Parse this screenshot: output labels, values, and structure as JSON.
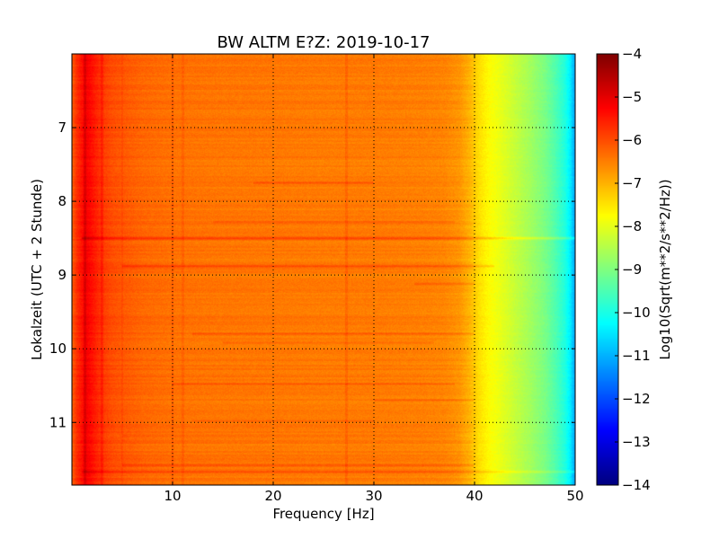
{
  "chart_data": {
    "type": "heatmap",
    "title": "BW ALTM E?Z: 2019-10-17",
    "xlabel": "Frequency [Hz]",
    "ylabel": "Lokalzeit (UTC + 2 Stunde)",
    "xlim": [
      0,
      50
    ],
    "ylim": [
      6.0,
      11.85
    ],
    "x_ticks": [
      10,
      20,
      30,
      40,
      50
    ],
    "y_ticks": [
      7,
      8,
      9,
      10,
      11
    ],
    "grid": true,
    "colormap": "jet",
    "colorbar": {
      "label": "Log10(Sqrt(m**2/s**2/Hz))",
      "range": [
        -14,
        -4
      ],
      "ticks": [
        -4,
        -5,
        -6,
        -7,
        -8,
        -9,
        -10,
        -11,
        -12,
        -13,
        -14
      ]
    },
    "frequency_profile": {
      "x": [
        0.0,
        0.5,
        1.0,
        1.5,
        2.0,
        3.0,
        4.0,
        5.0,
        7.0,
        10.0,
        15.0,
        20.0,
        25.0,
        30.0,
        35.0,
        37.0,
        38.5,
        39.5,
        40.5,
        41.5,
        42.5,
        44.0,
        45.5,
        47.0,
        48.0,
        49.0,
        49.5,
        50.0
      ],
      "values": [
        -6.2,
        -5.7,
        -5.4,
        -5.2,
        -5.4,
        -5.8,
        -6.0,
        -6.1,
        -6.25,
        -6.35,
        -6.4,
        -6.42,
        -6.45,
        -6.45,
        -6.5,
        -6.55,
        -6.7,
        -7.0,
        -7.45,
        -7.75,
        -7.95,
        -8.3,
        -8.65,
        -9.05,
        -9.45,
        -9.95,
        -10.4,
        -11.2
      ]
    },
    "horizontal_bands": [
      {
        "time": 7.75,
        "f_range": [
          18,
          30
        ],
        "delta": 0.35
      },
      {
        "time": 8.28,
        "f_range": [
          14,
          38
        ],
        "delta": 0.25
      },
      {
        "time": 8.5,
        "f_range": [
          1,
          50
        ],
        "delta": 0.75
      },
      {
        "time": 8.88,
        "f_range": [
          5,
          42
        ],
        "delta": 0.45
      },
      {
        "time": 9.12,
        "f_range": [
          34,
          40
        ],
        "delta": 0.35
      },
      {
        "time": 9.8,
        "f_range": [
          12,
          40
        ],
        "delta": 0.3
      },
      {
        "time": 9.92,
        "f_range": [
          15,
          36
        ],
        "delta": 0.25
      },
      {
        "time": 10.48,
        "f_range": [
          10,
          38
        ],
        "delta": 0.3
      },
      {
        "time": 10.7,
        "f_range": [
          30,
          40
        ],
        "delta": 0.3
      },
      {
        "time": 10.98,
        "f_range": [
          12,
          30
        ],
        "delta": 0.2
      },
      {
        "time": 11.18,
        "f_range": [
          5,
          38
        ],
        "delta": 0.25
      },
      {
        "time": 11.58,
        "f_range": [
          5,
          40
        ],
        "delta": 0.35
      },
      {
        "time": 11.67,
        "f_range": [
          1,
          50
        ],
        "delta": 0.45
      }
    ],
    "vertical_lines": [
      {
        "freq": 1.3,
        "delta": 0.35
      },
      {
        "freq": 3.0,
        "delta": 0.25
      },
      {
        "freq": 5.0,
        "delta": 0.12
      },
      {
        "freq": 10.0,
        "delta": 0.2
      },
      {
        "freq": 11.0,
        "delta": 0.15
      },
      {
        "freq": 27.3,
        "delta": 0.2
      }
    ]
  }
}
